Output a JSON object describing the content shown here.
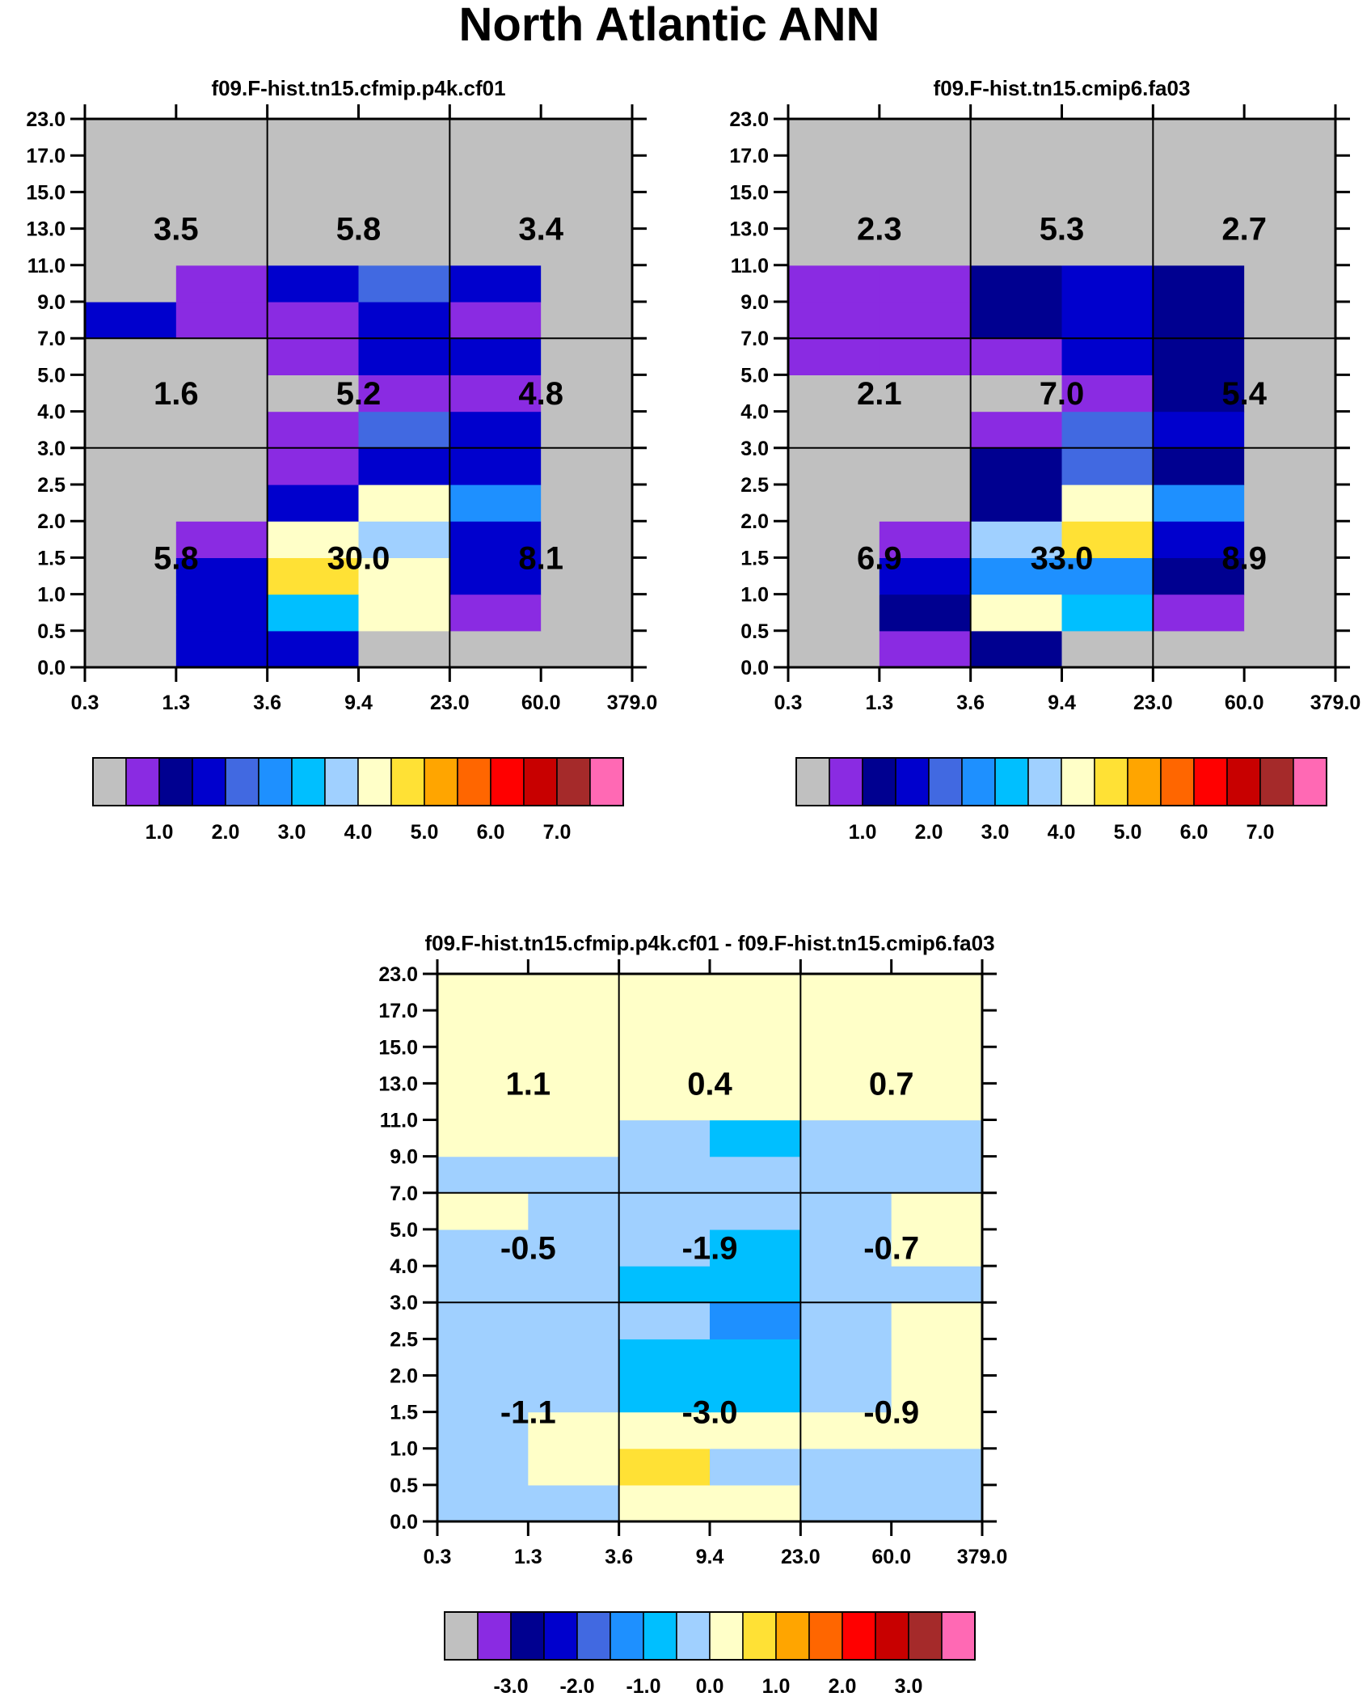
{
  "title": "North Atlantic ANN",
  "chart_data": [
    {
      "type": "heatmap",
      "title": "f09.F-hist.tn15.cfmip.p4k.cf01",
      "x_ticks": [
        "0.3",
        "1.3",
        "3.6",
        "9.4",
        "23.0",
        "60.0",
        "379.0"
      ],
      "y_ticks": [
        "0.0",
        "0.5",
        "1.0",
        "1.5",
        "2.0",
        "2.5",
        "3.0",
        "4.0",
        "5.0",
        "7.0",
        "9.0",
        "11.0",
        "13.0",
        "15.0",
        "17.0",
        "23.0"
      ],
      "cell_levels": [
        [
          0,
          3,
          3,
          0,
          0,
          0
        ],
        [
          0,
          3,
          6,
          8,
          1,
          0
        ],
        [
          0,
          3,
          9,
          8,
          3,
          0
        ],
        [
          0,
          1,
          8,
          7,
          3,
          0
        ],
        [
          0,
          0,
          3,
          8,
          5,
          0
        ],
        [
          0,
          0,
          1,
          3,
          3,
          0
        ],
        [
          0,
          0,
          1,
          4,
          3,
          0
        ],
        [
          0,
          0,
          0,
          1,
          1,
          0
        ],
        [
          0,
          0,
          1,
          3,
          3,
          0
        ],
        [
          3,
          1,
          1,
          3,
          1,
          0
        ],
        [
          0,
          1,
          3,
          4,
          3,
          0
        ],
        [
          0,
          0,
          0,
          0,
          0,
          0
        ],
        [
          0,
          0,
          0,
          0,
          0,
          0
        ],
        [
          0,
          0,
          0,
          0,
          0,
          0
        ],
        [
          0,
          0,
          0,
          0,
          0,
          0
        ]
      ],
      "aggregates": [
        {
          "col": 0,
          "band": "low",
          "value": "5.8"
        },
        {
          "col": 1,
          "band": "low",
          "value": "30.0"
        },
        {
          "col": 2,
          "band": "low",
          "value": "8.1"
        },
        {
          "col": 0,
          "band": "mid",
          "value": "1.6"
        },
        {
          "col": 1,
          "band": "mid",
          "value": "5.2"
        },
        {
          "col": 2,
          "band": "mid",
          "value": "4.8"
        },
        {
          "col": 0,
          "band": "high",
          "value": "3.5"
        },
        {
          "col": 1,
          "band": "high",
          "value": "5.8"
        },
        {
          "col": 2,
          "band": "high",
          "value": "3.4"
        }
      ],
      "colorbar_labels": [
        "1.0",
        "2.0",
        "3.0",
        "4.0",
        "5.0",
        "6.0",
        "7.0"
      ]
    },
    {
      "type": "heatmap",
      "title": "f09.F-hist.tn15.cmip6.fa03",
      "x_ticks": [
        "0.3",
        "1.3",
        "3.6",
        "9.4",
        "23.0",
        "60.0",
        "379.0"
      ],
      "y_ticks": [
        "0.0",
        "0.5",
        "1.0",
        "1.5",
        "2.0",
        "2.5",
        "3.0",
        "4.0",
        "5.0",
        "7.0",
        "9.0",
        "11.0",
        "13.0",
        "15.0",
        "17.0",
        "23.0"
      ],
      "cell_levels": [
        [
          0,
          1,
          2,
          0,
          0,
          0
        ],
        [
          0,
          2,
          8,
          6,
          1,
          0
        ],
        [
          0,
          3,
          5,
          5,
          2,
          0
        ],
        [
          0,
          1,
          7,
          9,
          3,
          0
        ],
        [
          0,
          0,
          2,
          8,
          5,
          0
        ],
        [
          0,
          0,
          2,
          4,
          2,
          0
        ],
        [
          0,
          0,
          1,
          4,
          3,
          0
        ],
        [
          0,
          0,
          0,
          1,
          2,
          0
        ],
        [
          1,
          1,
          1,
          3,
          2,
          0
        ],
        [
          1,
          1,
          2,
          3,
          2,
          0
        ],
        [
          1,
          1,
          2,
          3,
          2,
          0
        ],
        [
          0,
          0,
          0,
          0,
          0,
          0
        ],
        [
          0,
          0,
          0,
          0,
          0,
          0
        ],
        [
          0,
          0,
          0,
          0,
          0,
          0
        ],
        [
          0,
          0,
          0,
          0,
          0,
          0
        ]
      ],
      "aggregates": [
        {
          "col": 0,
          "band": "low",
          "value": "6.9"
        },
        {
          "col": 1,
          "band": "low",
          "value": "33.0"
        },
        {
          "col": 2,
          "band": "low",
          "value": "8.9"
        },
        {
          "col": 0,
          "band": "mid",
          "value": "2.1"
        },
        {
          "col": 1,
          "band": "mid",
          "value": "7.0"
        },
        {
          "col": 2,
          "band": "mid",
          "value": "5.4"
        },
        {
          "col": 0,
          "band": "high",
          "value": "2.3"
        },
        {
          "col": 1,
          "band": "high",
          "value": "5.3"
        },
        {
          "col": 2,
          "band": "high",
          "value": "2.7"
        }
      ],
      "colorbar_labels": [
        "1.0",
        "2.0",
        "3.0",
        "4.0",
        "5.0",
        "6.0",
        "7.0"
      ]
    },
    {
      "type": "heatmap",
      "title": "f09.F-hist.tn15.cfmip.p4k.cf01 - f09.F-hist.tn15.cmip6.fa03",
      "x_ticks": [
        "0.3",
        "1.3",
        "3.6",
        "9.4",
        "23.0",
        "60.0",
        "379.0"
      ],
      "y_ticks": [
        "0.0",
        "0.5",
        "1.0",
        "1.5",
        "2.0",
        "2.5",
        "3.0",
        "4.0",
        "5.0",
        "7.0",
        "9.0",
        "11.0",
        "13.0",
        "15.0",
        "17.0",
        "23.0"
      ],
      "cell_levels": [
        [
          7,
          7,
          8,
          8,
          7,
          7
        ],
        [
          7,
          8,
          9,
          7,
          7,
          7
        ],
        [
          7,
          8,
          8,
          8,
          8,
          8
        ],
        [
          7,
          7,
          6,
          6,
          7,
          8
        ],
        [
          7,
          7,
          6,
          6,
          7,
          8
        ],
        [
          7,
          7,
          7,
          5,
          7,
          8
        ],
        [
          7,
          7,
          6,
          6,
          7,
          7
        ],
        [
          7,
          7,
          7,
          6,
          7,
          8
        ],
        [
          8,
          7,
          7,
          7,
          7,
          8
        ],
        [
          7,
          7,
          7,
          7,
          7,
          7
        ],
        [
          8,
          8,
          7,
          6,
          7,
          7
        ],
        [
          8,
          8,
          8,
          8,
          8,
          8
        ],
        [
          8,
          8,
          8,
          8,
          8,
          8
        ],
        [
          8,
          8,
          8,
          8,
          8,
          8
        ],
        [
          8,
          8,
          8,
          8,
          8,
          8
        ]
      ],
      "aggregates": [
        {
          "col": 0,
          "band": "low",
          "value": "-1.1"
        },
        {
          "col": 1,
          "band": "low",
          "value": "-3.0"
        },
        {
          "col": 2,
          "band": "low",
          "value": "-0.9"
        },
        {
          "col": 0,
          "band": "mid",
          "value": "-0.5"
        },
        {
          "col": 1,
          "band": "mid",
          "value": "-1.9"
        },
        {
          "col": 2,
          "band": "mid",
          "value": "-0.7"
        },
        {
          "col": 0,
          "band": "high",
          "value": "1.1"
        },
        {
          "col": 1,
          "band": "high",
          "value": "0.4"
        },
        {
          "col": 2,
          "band": "high",
          "value": "0.7"
        }
      ],
      "colorbar_labels": [
        "-3.0",
        "-2.0",
        "-1.0",
        "0.0",
        "1.0",
        "2.0",
        "3.0"
      ]
    }
  ],
  "palette": [
    "#c0c0c0",
    "#8a2be2",
    "#000090",
    "#0000cd",
    "#4169e1",
    "#1e90ff",
    "#00bfff",
    "#a0d0ff",
    "#ffffc8",
    "#ffe135",
    "#ffa500",
    "#ff6600",
    "#ff0000",
    "#c80000",
    "#a52a2a",
    "#ff69b4"
  ],
  "low_value_color": "#c0c0c0"
}
